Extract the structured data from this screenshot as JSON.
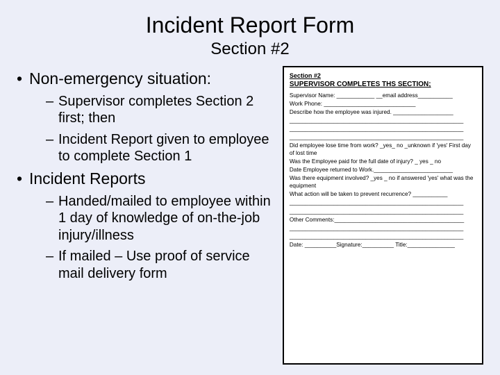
{
  "background_color": "#eceef8",
  "title": "Incident Report Form",
  "subtitle": "Section #2",
  "bullets": {
    "b1": {
      "label": "Non-emergency situation:",
      "s1": "Supervisor completes Section 2 first; then",
      "s2": "Incident Report given to employee to complete Section 1"
    },
    "b2": {
      "label": "Incident Reports",
      "s1": "Handed/mailed to employee within 1 day of knowledge of on-the-job injury/illness",
      "s2": "If mailed – Use proof of service mail delivery form"
    }
  },
  "form": {
    "section_label": "Section #2",
    "heading": "SUPERVISOR COMPLETES THS SECTION;",
    "line1": "Supervisor Name: ____________  __email address___________",
    "line2": "Work Phone: _____________________________",
    "line3": "Describe how the employee was injured. ___________________",
    "blank1": "_______________________________________________________",
    "blank2": "_______________________________________________________",
    "blank3": "_______________________________________________________",
    "q1": "Did employee lose time from work? _yes_ no _unknown if 'yes' First day of lost time",
    "q2": "Was the Employee paid for the full date of injury? _ yes _ no",
    "q3": "Date Employee returned to Work._________________________",
    "q4": "Was there equipment involved? _yes _ no if answered 'yes' what was the equipment",
    "q5": "What action will be taken to prevent recurrence? ___________",
    "blank4": "_______________________________________________________",
    "blank5": "_______________________________________________________",
    "other": "Other Comments:_________________________________________",
    "blank6": "_______________________________________________________",
    "blank7": "_______________________________________________________",
    "sig": "Date: __________Signature:__________ Title:_______________"
  }
}
